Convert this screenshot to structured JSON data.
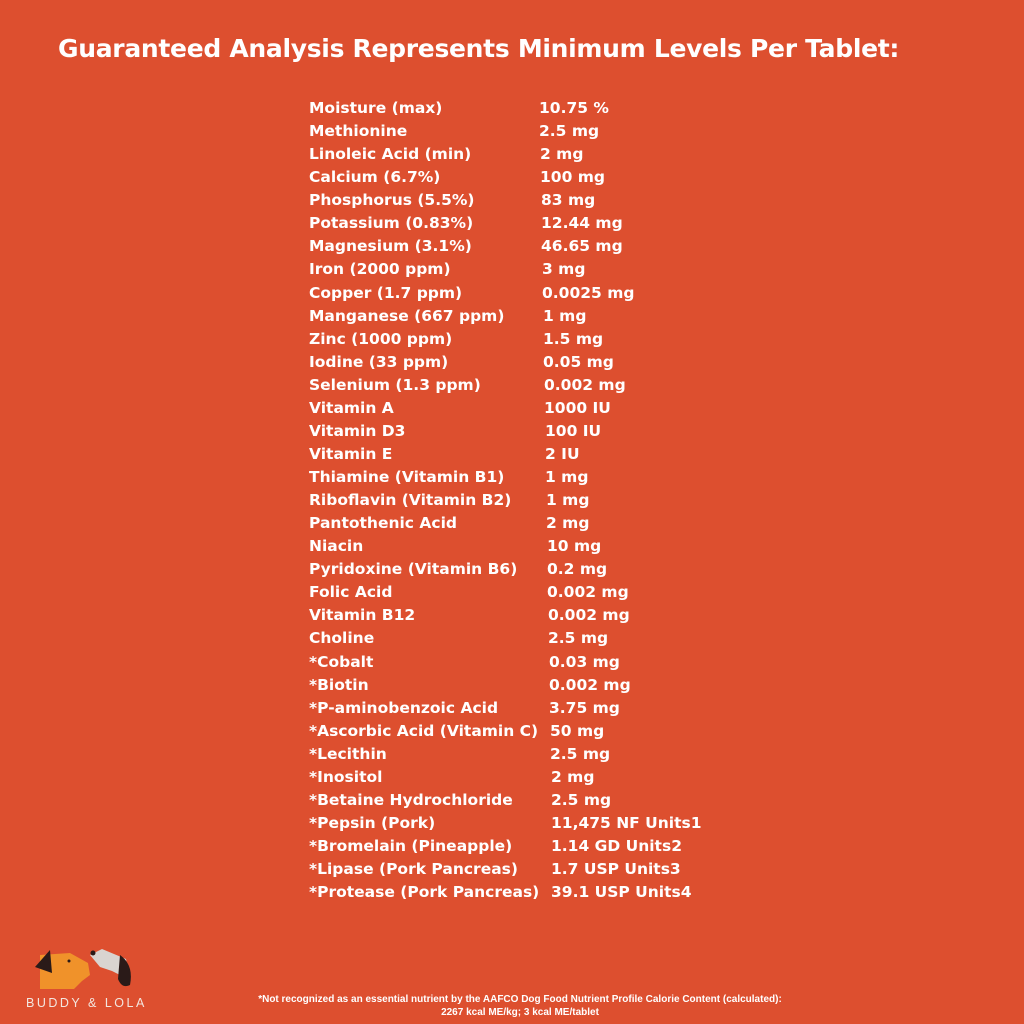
{
  "title": "Guaranteed Analysis Represents Minimum Levels Per Tablet:",
  "rows": [
    {
      "name": "Moisture (max)",
      "value": "10.75 %"
    },
    {
      "name": "Methionine",
      "value": "2.5 mg"
    },
    {
      "name": "Linoleic Acid (min)",
      "value": "2 mg"
    },
    {
      "name": "Calcium (6.7%)",
      "value": "100 mg"
    },
    {
      "name": "Phosphorus (5.5%)",
      "value": "83 mg"
    },
    {
      "name": "Potassium (0.83%)",
      "value": "12.44 mg"
    },
    {
      "name": "Magnesium (3.1%)",
      "value": "46.65 mg"
    },
    {
      "name": "Iron (2000 ppm)",
      "value": "3 mg"
    },
    {
      "name": "Copper (1.7 ppm)",
      "value": "0.0025 mg"
    },
    {
      "name": "Manganese (667 ppm)",
      "value": "1 mg"
    },
    {
      "name": "Zinc (1000 ppm)",
      "value": "1.5 mg"
    },
    {
      "name": "Iodine (33 ppm)",
      "value": "0.05 mg"
    },
    {
      "name": "Selenium (1.3 ppm)",
      "value": "0.002 mg"
    },
    {
      "name": "Vitamin A",
      "value": "1000 IU"
    },
    {
      "name": "Vitamin D3",
      "value": "100 IU"
    },
    {
      "name": "Vitamin E",
      "value": "2 IU"
    },
    {
      "name": "Thiamine (Vitamin B1)",
      "value": "1 mg"
    },
    {
      "name": "Riboflavin (Vitamin B2)",
      "value": "1 mg"
    },
    {
      "name": "Pantothenic Acid",
      "value": "2 mg"
    },
    {
      "name": "Niacin",
      "value": "10 mg"
    },
    {
      "name": "Pyridoxine (Vitamin B6)",
      "value": "0.2 mg"
    },
    {
      "name": "Folic Acid",
      "value": "0.002 mg"
    },
    {
      "name": "Vitamin B12",
      "value": "0.002 mg"
    },
    {
      "name": "Choline",
      "value": "2.5 mg"
    },
    {
      "name": "*Cobalt",
      "value": "0.03 mg"
    },
    {
      "name": "*Biotin",
      "value": "0.002 mg"
    },
    {
      "name": "*P-aminobenzoic Acid",
      "value": "3.75 mg"
    },
    {
      "name": "*Ascorbic Acid (Vitamin C)",
      "value": "50 mg"
    },
    {
      "name": "*Lecithin",
      "value": "2.5 mg"
    },
    {
      "name": "*Inositol",
      "value": "2 mg"
    },
    {
      "name": "*Betaine Hydrochloride",
      "value": "2.5 mg"
    },
    {
      "name": "*Pepsin (Pork)",
      "value": "11,475 NF Units1"
    },
    {
      "name": "*Bromelain (Pineapple)",
      "value": "1.14 GD Units2"
    },
    {
      "name": "*Lipase (Pork Pancreas)",
      "value": "1.7 USP Units3"
    },
    {
      "name": "*Protease (Pork Pancreas)",
      "value": "39.1 USP Units4"
    }
  ],
  "brand": "BUDDY & LOLA",
  "footnote_line1": "*Not recognized as an essential nutrient by the AAFCO Dog Food Nutrient Profile Calorie Content (calculated):",
  "footnote_line2": "2267 kcal ME/kg; 3 kcal ME/tablet",
  "colors": {
    "background": "#dd4f2f",
    "text": "#ffffff",
    "dog_orange": "#f0922a",
    "dog_grey": "#d9d4d0",
    "ear_dark": "#2a1a18"
  }
}
